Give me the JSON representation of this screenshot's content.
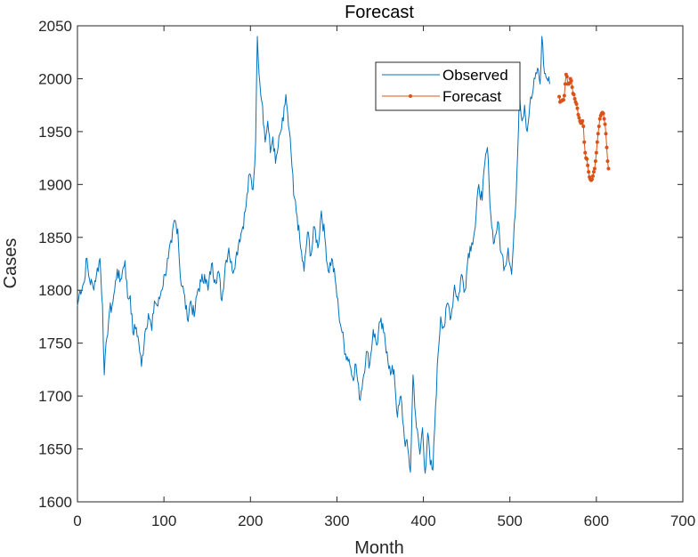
{
  "chart_data": {
    "type": "line",
    "title": "Forecast",
    "xlabel": "Month",
    "ylabel": "Cases",
    "xlim": [
      0,
      700
    ],
    "ylim": [
      1600,
      2050
    ],
    "xticks": [
      0,
      100,
      200,
      300,
      400,
      500,
      600,
      700
    ],
    "yticks": [
      1600,
      1650,
      1700,
      1750,
      1800,
      1850,
      1900,
      1950,
      2000,
      2050
    ],
    "grid": false,
    "legend_position": "top-right",
    "series": [
      {
        "name": "Observed",
        "color": "#0072BD",
        "marker": "none",
        "anchors": [
          [
            0,
            1785
          ],
          [
            3,
            1800
          ],
          [
            8,
            1808
          ],
          [
            10,
            1830
          ],
          [
            14,
            1810
          ],
          [
            18,
            1803
          ],
          [
            22,
            1815
          ],
          [
            26,
            1830
          ],
          [
            29,
            1785
          ],
          [
            31,
            1720
          ],
          [
            34,
            1755
          ],
          [
            37,
            1780
          ],
          [
            40,
            1785
          ],
          [
            43,
            1800
          ],
          [
            46,
            1820
          ],
          [
            49,
            1808
          ],
          [
            52,
            1818
          ],
          [
            55,
            1828
          ],
          [
            58,
            1793
          ],
          [
            61,
            1795
          ],
          [
            64,
            1760
          ],
          [
            68,
            1765
          ],
          [
            71,
            1750
          ],
          [
            74,
            1728
          ],
          [
            78,
            1760
          ],
          [
            82,
            1778
          ],
          [
            86,
            1762
          ],
          [
            89,
            1790
          ],
          [
            93,
            1785
          ],
          [
            97,
            1800
          ],
          [
            101,
            1815
          ],
          [
            105,
            1830
          ],
          [
            109,
            1845
          ],
          [
            112,
            1866
          ],
          [
            116,
            1858
          ],
          [
            119,
            1812
          ],
          [
            123,
            1798
          ],
          [
            127,
            1773
          ],
          [
            131,
            1790
          ],
          [
            135,
            1775
          ],
          [
            139,
            1800
          ],
          [
            143,
            1808
          ],
          [
            147,
            1815
          ],
          [
            151,
            1800
          ],
          [
            155,
            1825
          ],
          [
            159,
            1810
          ],
          [
            163,
            1818
          ],
          [
            167,
            1790
          ],
          [
            171,
            1825
          ],
          [
            175,
            1840
          ],
          [
            179,
            1818
          ],
          [
            183,
            1830
          ],
          [
            187,
            1848
          ],
          [
            191,
            1860
          ],
          [
            195,
            1880
          ],
          [
            199,
            1910
          ],
          [
            203,
            1895
          ],
          [
            206,
            1940
          ],
          [
            208,
            2040
          ],
          [
            211,
            1995
          ],
          [
            214,
            1975
          ],
          [
            217,
            1940
          ],
          [
            220,
            1960
          ],
          [
            223,
            1930
          ],
          [
            226,
            1945
          ],
          [
            229,
            1920
          ],
          [
            232,
            1935
          ],
          [
            235,
            1950
          ],
          [
            238,
            1960
          ],
          [
            241,
            1985
          ],
          [
            244,
            1955
          ],
          [
            247,
            1930
          ],
          [
            250,
            1890
          ],
          [
            254,
            1870
          ],
          [
            258,
            1840
          ],
          [
            262,
            1818
          ],
          [
            266,
            1855
          ],
          [
            270,
            1833
          ],
          [
            274,
            1860
          ],
          [
            278,
            1840
          ],
          [
            282,
            1875
          ],
          [
            286,
            1850
          ],
          [
            290,
            1818
          ],
          [
            294,
            1830
          ],
          [
            298,
            1810
          ],
          [
            302,
            1780
          ],
          [
            306,
            1760
          ],
          [
            310,
            1740
          ],
          [
            314,
            1735
          ],
          [
            318,
            1718
          ],
          [
            322,
            1730
          ],
          [
            326,
            1697
          ],
          [
            330,
            1715
          ],
          [
            334,
            1742
          ],
          [
            338,
            1730
          ],
          [
            342,
            1763
          ],
          [
            346,
            1748
          ],
          [
            350,
            1770
          ],
          [
            354,
            1760
          ],
          [
            358,
            1742
          ],
          [
            362,
            1720
          ],
          [
            366,
            1725
          ],
          [
            370,
            1680
          ],
          [
            374,
            1700
          ],
          [
            378,
            1660
          ],
          [
            382,
            1650
          ],
          [
            385,
            1628
          ],
          [
            388,
            1720
          ],
          [
            392,
            1670
          ],
          [
            396,
            1645
          ],
          [
            399,
            1670
          ],
          [
            402,
            1627
          ],
          [
            405,
            1665
          ],
          [
            408,
            1635
          ],
          [
            411,
            1630
          ],
          [
            414,
            1690
          ],
          [
            417,
            1740
          ],
          [
            420,
            1775
          ],
          [
            424,
            1765
          ],
          [
            428,
            1788
          ],
          [
            432,
            1775
          ],
          [
            436,
            1805
          ],
          [
            440,
            1790
          ],
          [
            444,
            1815
          ],
          [
            448,
            1800
          ],
          [
            452,
            1835
          ],
          [
            456,
            1845
          ],
          [
            460,
            1860
          ],
          [
            464,
            1900
          ],
          [
            468,
            1885
          ],
          [
            471,
            1920
          ],
          [
            474,
            1935
          ],
          [
            476,
            1900
          ],
          [
            479,
            1860
          ],
          [
            482,
            1845
          ],
          [
            486,
            1865
          ],
          [
            490,
            1835
          ],
          [
            494,
            1822
          ],
          [
            498,
            1840
          ],
          [
            502,
            1815
          ],
          [
            506,
            1870
          ],
          [
            509,
            1930
          ],
          [
            511,
            1990
          ],
          [
            514,
            1960
          ],
          [
            517,
            1975
          ],
          [
            520,
            1950
          ],
          [
            523,
            1975
          ],
          [
            526,
            1985
          ],
          [
            529,
            2000
          ],
          [
            532,
            2010
          ],
          [
            535,
            1995
          ],
          [
            537,
            2040
          ],
          [
            540,
            2005
          ],
          [
            543,
            2000
          ],
          [
            546,
            1995
          ]
        ]
      },
      {
        "name": "Forecast",
        "color": "#D95319",
        "marker": "dot",
        "values": [
          [
            557,
            1983
          ],
          [
            558,
            1978
          ],
          [
            559,
            1979
          ],
          [
            560,
            1979
          ],
          [
            561,
            1980
          ],
          [
            562,
            1980
          ],
          [
            563,
            1984
          ],
          [
            564,
            1995
          ],
          [
            565,
            2004
          ],
          [
            566,
            2002
          ],
          [
            567,
            1995
          ],
          [
            568,
            1995
          ],
          [
            569,
            1996
          ],
          [
            570,
            2000
          ],
          [
            571,
            1998
          ],
          [
            572,
            1992
          ],
          [
            573,
            1986
          ],
          [
            574,
            1985
          ],
          [
            575,
            1981
          ],
          [
            576,
            1978
          ],
          [
            577,
            1976
          ],
          [
            578,
            1972
          ],
          [
            579,
            1966
          ],
          [
            580,
            1963
          ],
          [
            581,
            1960
          ],
          [
            582,
            1958
          ],
          [
            583,
            1958
          ],
          [
            584,
            1960
          ],
          [
            585,
            1955
          ],
          [
            586,
            1940
          ],
          [
            587,
            1930
          ],
          [
            588,
            1925
          ],
          [
            589,
            1924
          ],
          [
            590,
            1918
          ],
          [
            591,
            1912
          ],
          [
            592,
            1907
          ],
          [
            593,
            1905
          ],
          [
            594,
            1904
          ],
          [
            595,
            1905
          ],
          [
            596,
            1908
          ],
          [
            597,
            1912
          ],
          [
            598,
            1915
          ],
          [
            599,
            1922
          ],
          [
            600,
            1930
          ],
          [
            601,
            1940
          ],
          [
            602,
            1948
          ],
          [
            603,
            1955
          ],
          [
            604,
            1962
          ],
          [
            605,
            1965
          ],
          [
            606,
            1967
          ],
          [
            607,
            1968
          ],
          [
            608,
            1967
          ],
          [
            609,
            1962
          ],
          [
            610,
            1957
          ],
          [
            611,
            1948
          ],
          [
            612,
            1935
          ],
          [
            613,
            1922
          ],
          [
            614,
            1915
          ]
        ]
      }
    ]
  }
}
